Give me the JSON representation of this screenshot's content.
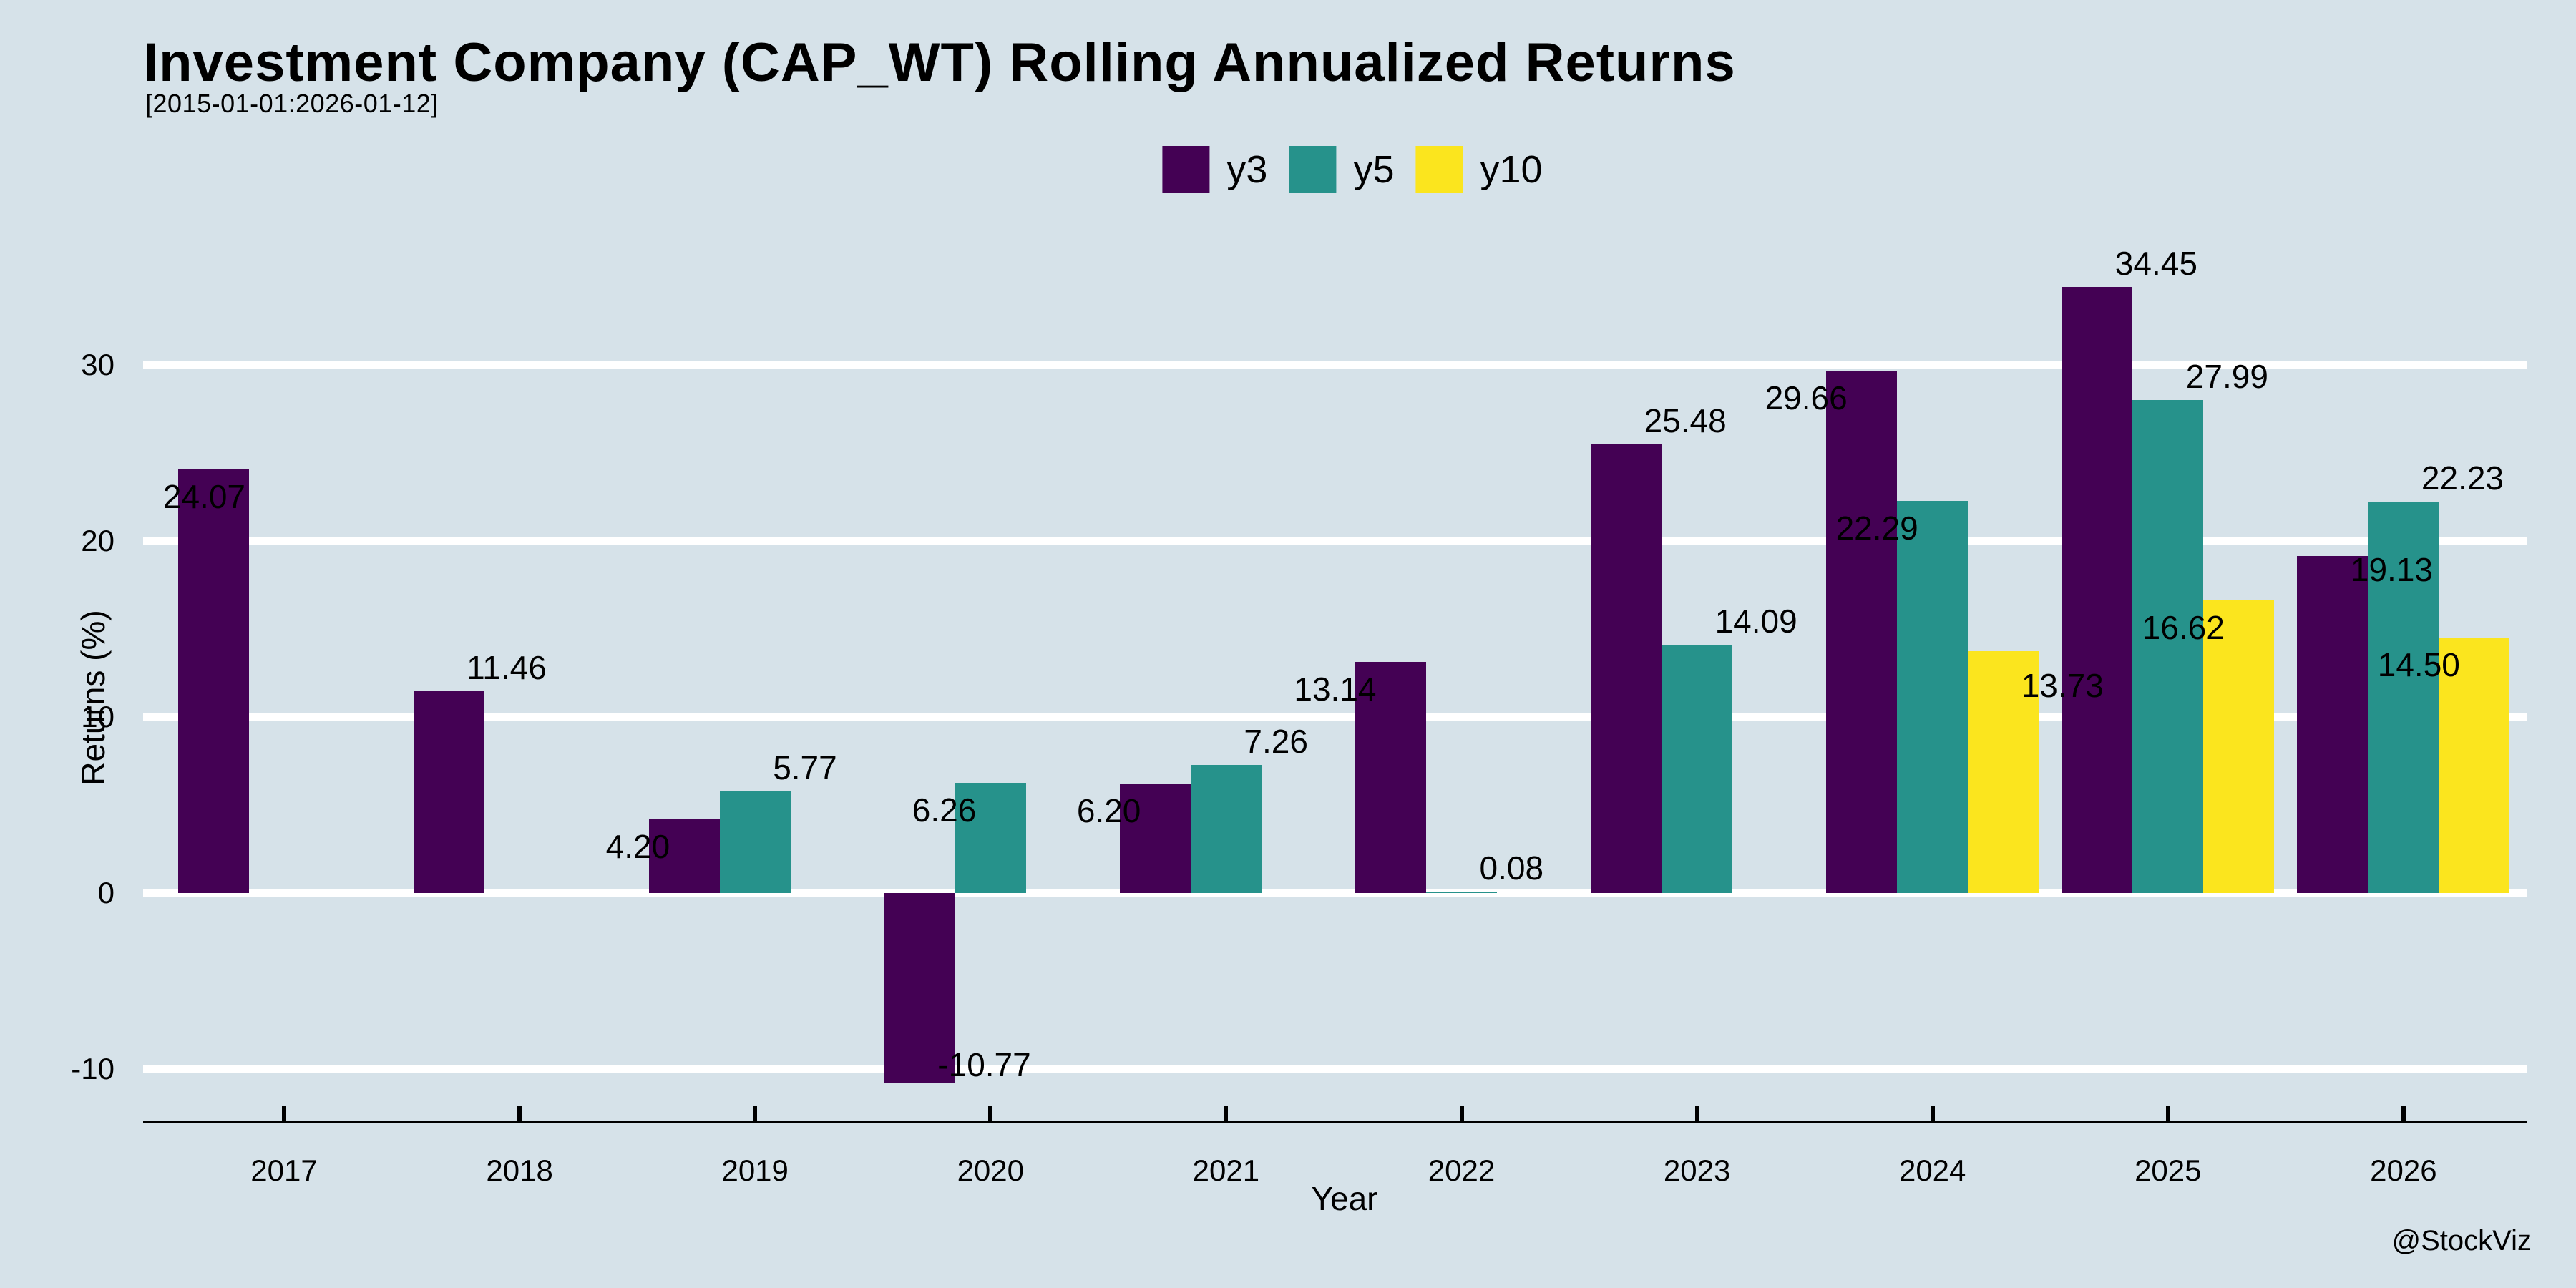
{
  "watermark": "@StockViz",
  "colors": {
    "background": "#d6e2e9",
    "grid": "#ffffff",
    "axis": "#000000",
    "text": "#000000"
  },
  "chart_data": {
    "type": "bar",
    "title": "Investment Company (CAP_WT) Rolling Annualized Returns",
    "subtitle": "[2015-01-01:2026-01-12]",
    "xlabel": "Year",
    "ylabel": "Returns (%)",
    "legend_position": "top-center",
    "grid": "horizontal-white",
    "yticks": [
      -10,
      0,
      10,
      20,
      30
    ],
    "ylim": [
      -13,
      37
    ],
    "categories": [
      "2017",
      "2018",
      "2019",
      "2020",
      "2021",
      "2022",
      "2023",
      "2024",
      "2025",
      "2026"
    ],
    "series": [
      {
        "name": "y3",
        "color": "#440154",
        "values": [
          24.07,
          11.46,
          4.2,
          -10.77,
          6.2,
          13.14,
          25.48,
          29.66,
          34.45,
          19.13
        ],
        "labels": [
          {
            "pos": "below-left",
            "dx": 65
          },
          {
            "pos": "above-right"
          },
          {
            "pos": "below-left"
          },
          {
            "pos": "neg-right"
          },
          {
            "pos": "below-left"
          },
          {
            "pos": "below-left"
          },
          {
            "pos": "above-right"
          },
          {
            "pos": "below-left"
          },
          {
            "pos": "above-right"
          },
          {
            "pos": "below-right",
            "dy": -29
          }
        ]
      },
      {
        "name": "y5",
        "color": "#26928b",
        "values": [
          null,
          null,
          5.77,
          6.26,
          7.26,
          0.08,
          14.09,
          22.29,
          27.99,
          22.23
        ],
        "labels": [
          null,
          null,
          {
            "pos": "above-right"
          },
          {
            "pos": "below-left"
          },
          {
            "pos": "above-right"
          },
          {
            "pos": "above-right"
          },
          {
            "pos": "above-right"
          },
          {
            "pos": "below-left"
          },
          {
            "pos": "above-right"
          },
          {
            "pos": "above-right"
          }
        ]
      },
      {
        "name": "y10",
        "color": "#fbe51e",
        "values": [
          null,
          null,
          null,
          null,
          null,
          null,
          null,
          13.73,
          16.62,
          14.5
        ],
        "labels": [
          null,
          null,
          null,
          null,
          null,
          null,
          null,
          {
            "pos": "below-right"
          },
          {
            "pos": "below-left"
          },
          {
            "pos": "below-left"
          }
        ]
      }
    ]
  }
}
